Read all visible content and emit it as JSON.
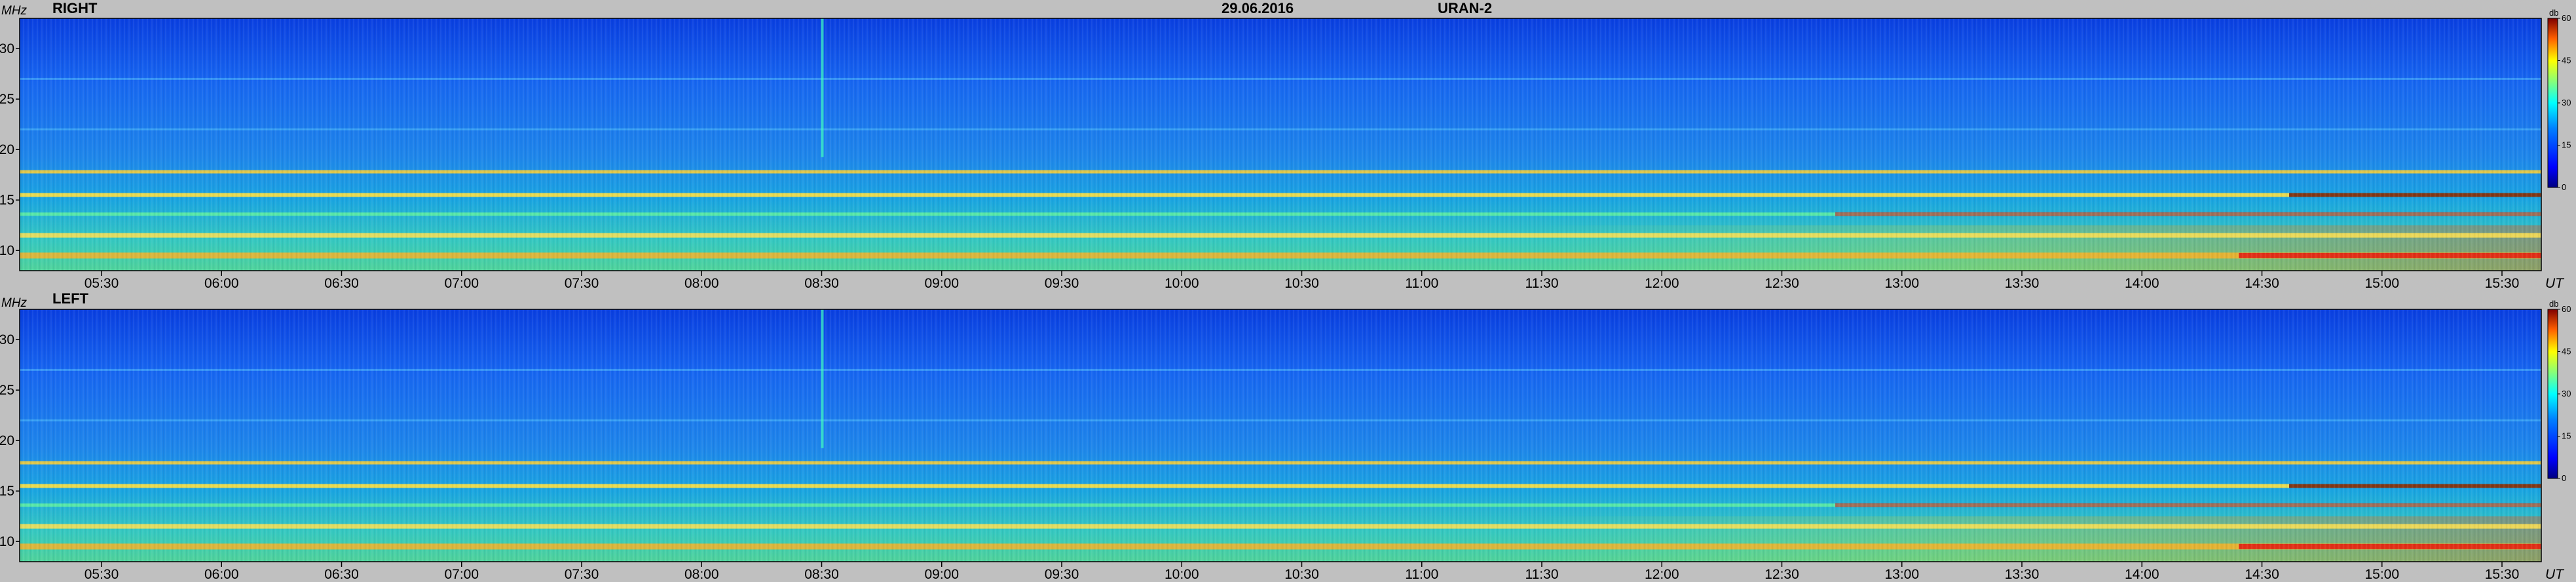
{
  "header": {
    "date": "29.06.2016",
    "instrument": "URAN-2"
  },
  "chart_data": [
    {
      "type": "heatmap",
      "title": "RIGHT",
      "ylabel": "MHz",
      "xlabel": "UT",
      "x_ticks": [
        "05:30",
        "06:00",
        "06:30",
        "07:00",
        "07:30",
        "08:00",
        "08:30",
        "09:00",
        "09:30",
        "10:00",
        "10:30",
        "11:00",
        "11:30",
        "12:00",
        "12:30",
        "13:00",
        "13:30",
        "14:00",
        "14:30",
        "15:00",
        "15:30"
      ],
      "y_ticks": [
        10,
        15,
        20,
        25,
        30
      ],
      "ylim": [
        8,
        33
      ],
      "colorbar": {
        "label": "db",
        "ticks": [
          0,
          15,
          30,
          45,
          60
        ],
        "range": [
          0,
          60
        ]
      },
      "bands_mhz": [
        17.8,
        15.5,
        13.6,
        11.5,
        9.5
      ]
    },
    {
      "type": "heatmap",
      "title": "LEFT",
      "ylabel": "MHz",
      "xlabel": "UT",
      "x_ticks": [
        "05:30",
        "06:00",
        "06:30",
        "07:00",
        "07:30",
        "08:00",
        "08:30",
        "09:00",
        "09:30",
        "10:00",
        "10:30",
        "11:00",
        "11:30",
        "12:00",
        "12:30",
        "13:00",
        "13:30",
        "14:00",
        "14:30",
        "15:00",
        "15:30"
      ],
      "y_ticks": [
        10,
        15,
        20,
        25,
        30
      ],
      "ylim": [
        8,
        33
      ],
      "colorbar": {
        "label": "db",
        "ticks": [
          0,
          15,
          30,
          45,
          60
        ],
        "range": [
          0,
          60
        ]
      },
      "bands_mhz": [
        17.8,
        15.5,
        13.6,
        11.5,
        9.5
      ]
    }
  ]
}
